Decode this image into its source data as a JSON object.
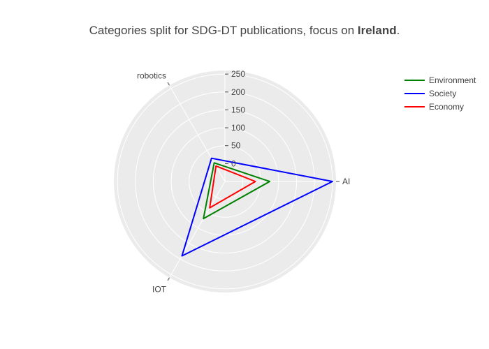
{
  "chart_data": {
    "type": "radar",
    "title": {
      "prefix": "Categories split for SDG-DT publications, focus on ",
      "highlight": "Ireland",
      "suffix": "."
    },
    "axes": [
      "AI",
      "IOT",
      "robotics"
    ],
    "series": [
      {
        "name": "Environment",
        "values": [
          75,
          70,
          10
        ],
        "color": "#008000"
      },
      {
        "name": "Society",
        "values": [
          250,
          190,
          25
        ],
        "color": "#0000ff"
      },
      {
        "name": "Economy",
        "values": [
          35,
          35,
          0
        ],
        "color": "#ff0000"
      }
    ],
    "radial_axis": {
      "range": [
        -50,
        260
      ],
      "ticks": [
        0,
        50,
        100,
        150,
        200,
        250
      ],
      "tick_labels": [
        "0",
        "50",
        "100",
        "150",
        "200",
        "250"
      ]
    },
    "angular_start_deg": 0,
    "direction": "clockwise",
    "legend_position": "top-right",
    "grid": true,
    "background_color": "#ebebeb",
    "grid_color": "#ffffff"
  }
}
